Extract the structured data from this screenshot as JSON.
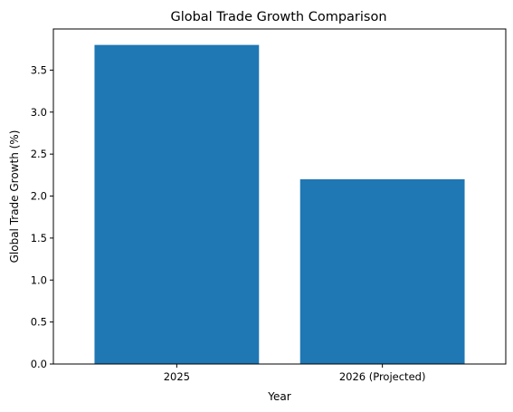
{
  "chart_data": {
    "type": "bar",
    "title": "Global Trade Growth Comparison",
    "xlabel": "Year",
    "ylabel": "Global Trade Growth (%)",
    "categories": [
      "2025",
      "2026 (Projected)"
    ],
    "values": [
      3.8,
      2.2
    ],
    "ylim": [
      0,
      3.99
    ],
    "yticks": [
      0.0,
      0.5,
      1.0,
      1.5,
      2.0,
      2.5,
      3.0,
      3.5
    ],
    "ytick_labels": [
      "0.0",
      "0.5",
      "1.0",
      "1.5",
      "2.0",
      "2.5",
      "3.0",
      "3.5"
    ],
    "bar_color": "#1f77b4",
    "grid": false,
    "legend": "none"
  }
}
